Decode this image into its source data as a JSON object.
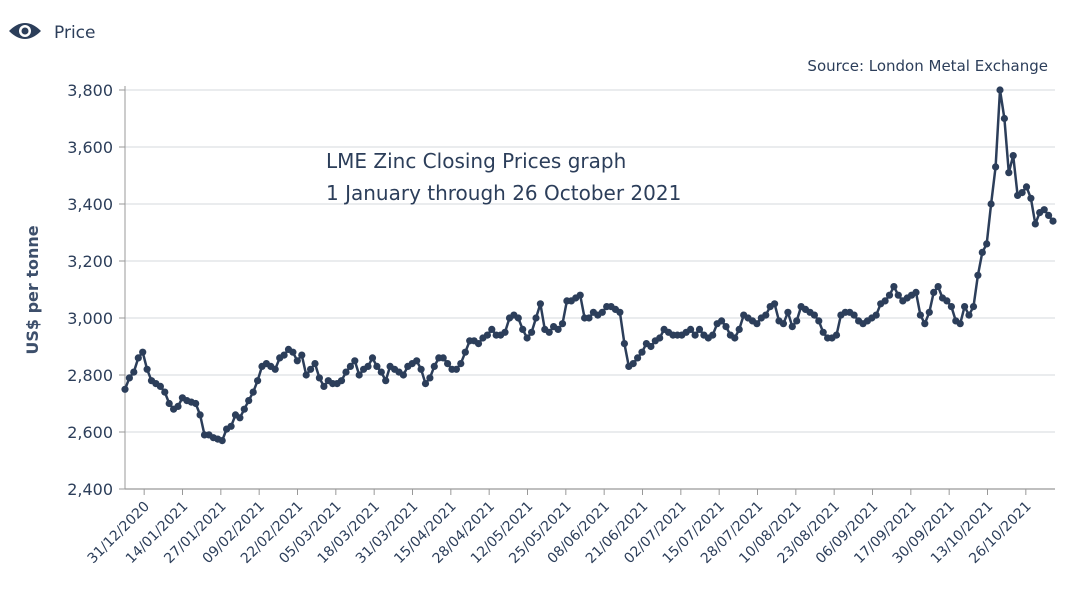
{
  "legend": {
    "label": "Price",
    "icon": "eye-icon"
  },
  "colors": {
    "line": "#2c3e5a",
    "grid": "#d4d8de",
    "axis": "#999999",
    "text": "#2c3e5a"
  },
  "chart_data": {
    "type": "line",
    "title": "LME Zinc Closing Prices graph",
    "subtitle": "1 January through 26 October 2021",
    "source": "Source: London Metal Exchange",
    "xlabel": "",
    "ylabel": "US$ per tonne",
    "ylim": [
      2400,
      3800
    ],
    "yticks": [
      2400,
      2600,
      2800,
      3000,
      3200,
      3400,
      3600,
      3800
    ],
    "ytick_labels": [
      "2,400",
      "2,600",
      "2,800",
      "3,000",
      "3,200",
      "3,400",
      "3,600",
      "3,800"
    ],
    "xtick_labels": [
      "31/12/2020",
      "14/01/2021",
      "27/01/2021",
      "09/02/2021",
      "22/02/2021",
      "05/03/2021",
      "18/03/2021",
      "31/03/2021",
      "15/04/2021",
      "28/04/2021",
      "12/05/2021",
      "25/05/2021",
      "08/06/2021",
      "21/06/2021",
      "02/07/2021",
      "15/07/2021",
      "28/07/2021",
      "10/08/2021",
      "23/08/2021",
      "06/09/2021",
      "17/09/2021",
      "30/09/2021",
      "13/10/2021",
      "26/10/2021"
    ],
    "grid": true,
    "series": [
      {
        "name": "Price",
        "values": [
          2750,
          2790,
          2810,
          2860,
          2880,
          2820,
          2780,
          2770,
          2760,
          2740,
          2700,
          2680,
          2690,
          2720,
          2710,
          2705,
          2700,
          2660,
          2590,
          2590,
          2580,
          2575,
          2570,
          2610,
          2620,
          2660,
          2650,
          2680,
          2710,
          2740,
          2780,
          2830,
          2840,
          2830,
          2820,
          2860,
          2870,
          2890,
          2880,
          2850,
          2870,
          2800,
          2820,
          2840,
          2790,
          2760,
          2780,
          2770,
          2770,
          2780,
          2810,
          2830,
          2850,
          2800,
          2820,
          2830,
          2860,
          2830,
          2810,
          2780,
          2830,
          2820,
          2810,
          2800,
          2830,
          2840,
          2850,
          2820,
          2770,
          2790,
          2830,
          2860,
          2860,
          2840,
          2820,
          2820,
          2840,
          2880,
          2920,
          2920,
          2910,
          2930,
          2940,
          2960,
          2940,
          2940,
          2950,
          3000,
          3010,
          3000,
          2960,
          2930,
          2950,
          3000,
          3050,
          2960,
          2950,
          2970,
          2960,
          2980,
          3060,
          3060,
          3070,
          3080,
          3000,
          3000,
          3020,
          3010,
          3020,
          3040,
          3040,
          3030,
          3020,
          2910,
          2830,
          2840,
          2860,
          2880,
          2910,
          2900,
          2920,
          2930,
          2960,
          2950,
          2940,
          2940,
          2940,
          2950,
          2960,
          2940,
          2960,
          2940,
          2930,
          2940,
          2980,
          2990,
          2970,
          2940,
          2930,
          2960,
          3010,
          3000,
          2990,
          2980,
          3000,
          3010,
          3040,
          3050,
          2990,
          2980,
          3020,
          2970,
          2990,
          3040,
          3030,
          3020,
          3010,
          2990,
          2950,
          2930,
          2930,
          2940,
          3010,
          3020,
          3020,
          3010,
          2990,
          2980,
          2990,
          3000,
          3010,
          3050,
          3060,
          3080,
          3110,
          3080,
          3060,
          3070,
          3080,
          3090,
          3010,
          2980,
          3020,
          3090,
          3110,
          3070,
          3060,
          3040,
          2990,
          2980,
          3040,
          3010,
          3040,
          3150,
          3230,
          3260,
          3400,
          3530,
          3800,
          3700,
          3510,
          3570,
          3430,
          3440,
          3460,
          3420,
          3330,
          3370,
          3380,
          3360,
          3340
        ]
      }
    ]
  }
}
